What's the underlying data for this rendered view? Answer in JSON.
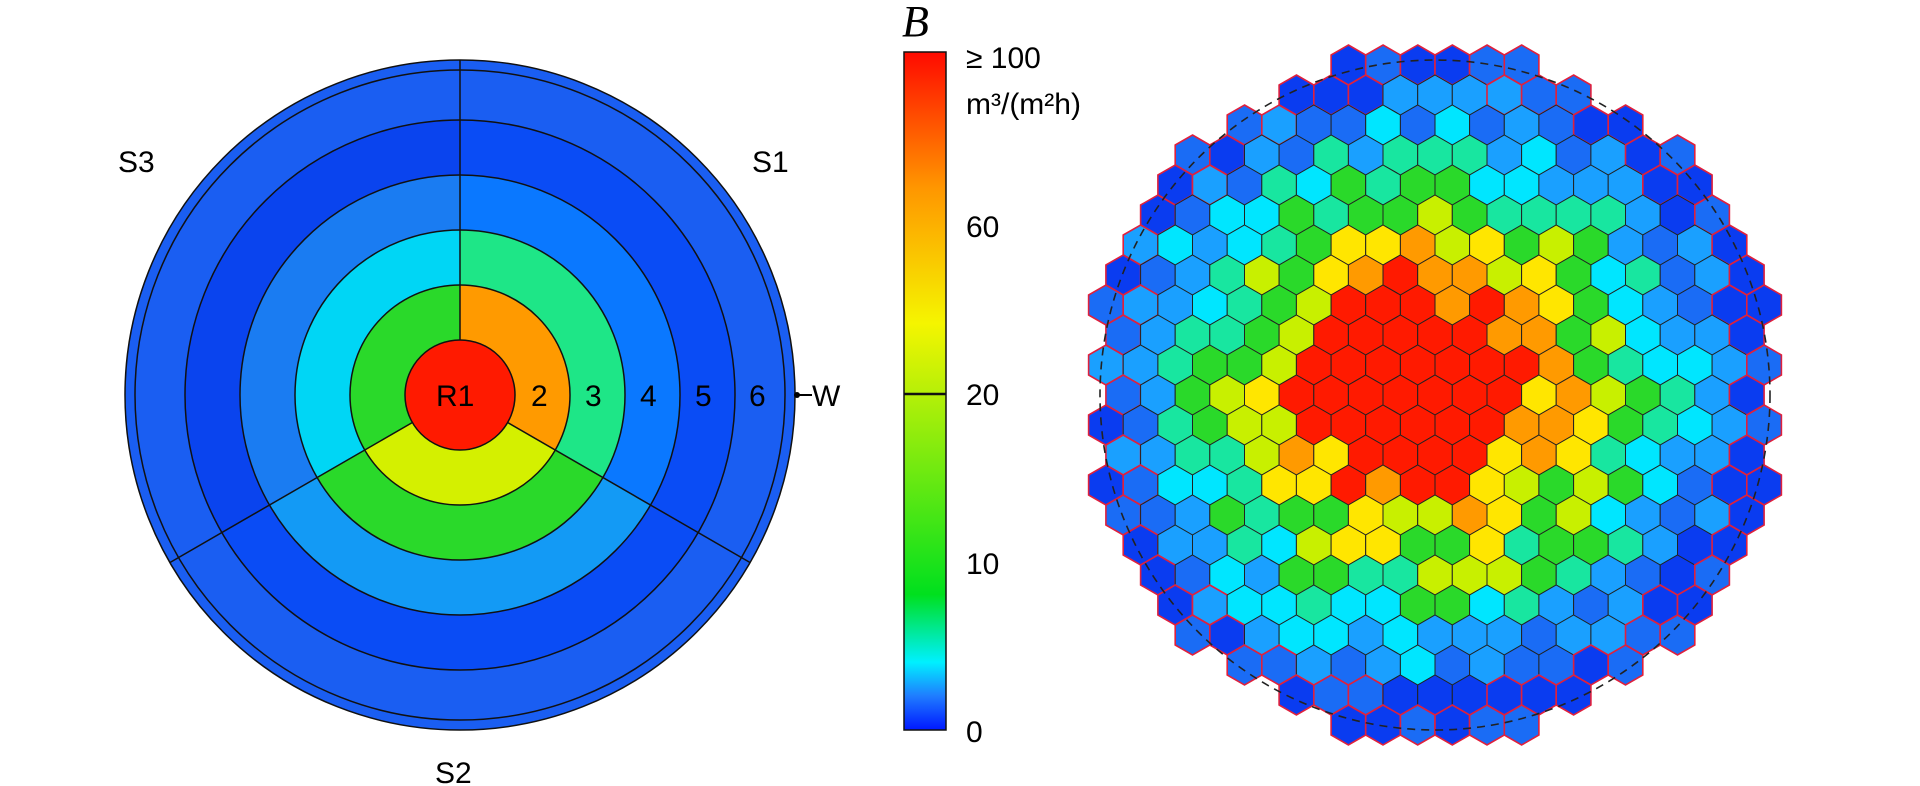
{
  "colorbar": {
    "symbol": "B",
    "max_label": "≥ 100",
    "unit": "m³/(m²h)",
    "ticks": [
      "60",
      "20",
      "10",
      "0"
    ],
    "tick_values": [
      60,
      20,
      10,
      0
    ],
    "range": [
      0,
      100
    ],
    "stops": [
      {
        "value": 0,
        "color": "#0018ff"
      },
      {
        "value": 5,
        "color": "#1f7cff"
      },
      {
        "value": 10,
        "color": "#00f0ff"
      },
      {
        "value": 20,
        "color": "#00e01e"
      },
      {
        "value": 60,
        "color": "#f5f500"
      },
      {
        "value": 80,
        "color": "#ff9600"
      },
      {
        "value": 100,
        "color": "#ff0a00"
      }
    ]
  },
  "sector_diagram": {
    "sector_labels": [
      "S3",
      "S1",
      "S2"
    ],
    "ring_labels": [
      "R1",
      "2",
      "3",
      "4",
      "5",
      "6",
      "W"
    ],
    "colors": {
      "r1": "#ff1a00",
      "s1": [
        "#ff9a00",
        "#c8f000",
        "#1ee687",
        "#0a78ff",
        "#0a4cf5",
        "#1a5ef2"
      ],
      "s2": [
        "#ff1a00",
        "#d4f000",
        "#2ad92a",
        "#139af5",
        "#0a4cf5",
        "#1a5ef2"
      ],
      "s3": [
        "#2ad92a",
        "#00d6f5",
        "#1a7cf2",
        "#0a44ee",
        "#1a5ef2"
      ]
    }
  },
  "hex_map": {
    "colors": {
      "red": "#ff1a00",
      "orange": "#ff9a00",
      "yellow": "#ffe600",
      "lime": "#c8f000",
      "green": "#2ad92a",
      "teal": "#18e6a0",
      "cyan": "#00e6ff",
      "sky": "#1aa0ff",
      "blue": "#1a6cf5",
      "deep": "#0a3cf0",
      "edge_stroke": "#e0203c",
      "cell_stroke": "#222222"
    }
  }
}
